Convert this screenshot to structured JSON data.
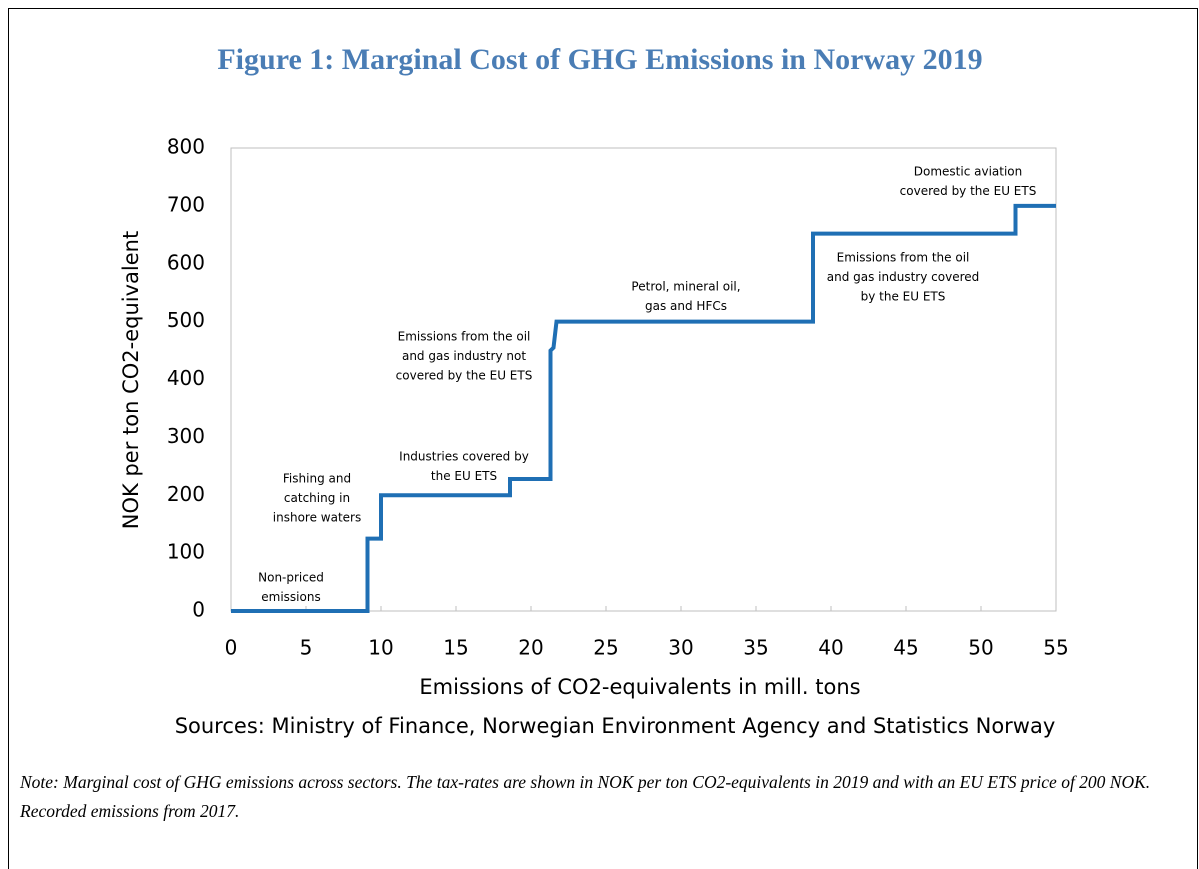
{
  "chart_data": {
    "type": "line",
    "title": "Figure 1: Marginal Cost of GHG Emissions in Norway 2019",
    "x_label": "Emissions of CO2-equivalents in mill. tons",
    "y_label": "NOK per ton CO2-equivalent",
    "sources": "Sources: Ministry of Finance, Norwegian Environment Agency and Statistics Norway",
    "note": "Note: Marginal cost of GHG emissions across sectors. The tax-rates are shown in NOK per ton CO2-equivalents in 2019 and with an EU ETS price of 200 NOK. Recorded emissions from 2017.",
    "x": [
      0,
      9.1,
      9.1,
      10,
      10,
      18.6,
      18.6,
      21.3,
      21.3,
      21.5,
      21.7,
      38.8,
      38.8,
      52.3,
      52.3,
      55
    ],
    "values": [
      0,
      0,
      125,
      125,
      200,
      200,
      228,
      228,
      450,
      455,
      500,
      500,
      652,
      652,
      700,
      700
    ],
    "color": "#1f6fb4",
    "xlim": [
      0,
      55
    ],
    "xticks": [
      0,
      5,
      10,
      15,
      20,
      25,
      30,
      35,
      40,
      45,
      50,
      55
    ],
    "ylim": [
      0,
      800
    ],
    "yticks": [
      0,
      100,
      200,
      300,
      400,
      500,
      600,
      700,
      800
    ],
    "grid": false,
    "annotations": [
      [
        "Non-priced",
        "emissions"
      ],
      [
        "Fishing and",
        "catching in",
        "inshore waters"
      ],
      [
        "Industries covered by",
        "the EU ETS"
      ],
      [
        "Emissions from the oil",
        "and gas industry not",
        "covered by the EU ETS"
      ],
      [
        "Petrol, mineral oil,",
        "gas and HFCs"
      ],
      [
        "Emissions from the oil",
        "and gas industry covered",
        "by the EU ETS"
      ],
      [
        "Domestic aviation",
        "covered by the EU ETS"
      ]
    ]
  }
}
